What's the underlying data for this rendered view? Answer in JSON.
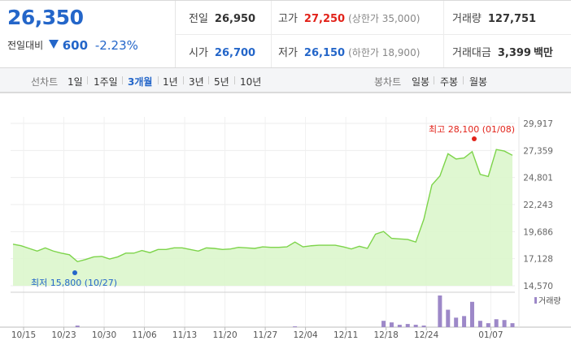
{
  "quote": {
    "price": "26,350",
    "change_label": "전일대비",
    "change_abs": "600",
    "change_pct": "-2.23%",
    "direction": "down",
    "prev_close_label": "전일",
    "prev_close": "26,950",
    "high_label": "고가",
    "high": "27,250",
    "upper_limit": "(상한가 35,000)",
    "volume_label": "거래량",
    "volume": "127,751",
    "open_label": "시가",
    "open": "26,700",
    "low_label": "저가",
    "low": "26,150",
    "lower_limit": "(하한가 18,900)",
    "turnover_label": "거래대금",
    "turnover": "3,399",
    "turnover_unit": "백만",
    "colors": {
      "up": "#e2231a",
      "down": "#2466c9"
    }
  },
  "toolbar": {
    "line_label": "선차트",
    "periods": [
      "1일",
      "1주일",
      "3개월",
      "1년",
      "3년",
      "5년",
      "10년"
    ],
    "selected_period": "3개월",
    "candle_label": "봉차트",
    "candles": [
      "일봉",
      "주봉",
      "월봉"
    ]
  },
  "chart_data": {
    "type": "area",
    "x_tick_labels": [
      "10/15",
      "10/23",
      "10/30",
      "11/06",
      "11/13",
      "11/20",
      "11/27",
      "12/04",
      "12/11",
      "12/18",
      "12/24",
      "01/07"
    ],
    "y_ticks": [
      "29,917",
      "27,359",
      "24,801",
      "22,243",
      "19,686",
      "17,128",
      "14,570"
    ],
    "ylim": [
      14570,
      29917
    ],
    "values": [
      18500,
      18350,
      18100,
      17850,
      18150,
      17850,
      17650,
      17500,
      16850,
      17050,
      17300,
      17350,
      17100,
      17300,
      17650,
      17650,
      17900,
      17700,
      18000,
      18000,
      18150,
      18150,
      18000,
      17850,
      18150,
      18100,
      18000,
      18050,
      18200,
      18150,
      18100,
      18250,
      18200,
      18200,
      18250,
      18700,
      18250,
      18350,
      18400,
      18400,
      18400,
      18250,
      18050,
      18300,
      18100,
      19450,
      19700,
      19050,
      19000,
      18950,
      18700,
      20850,
      24100,
      24950,
      27050,
      26550,
      26650,
      27250,
      25100,
      24900,
      27450,
      27300,
      26900
    ],
    "max_label": "최고 28,100 (01/08)",
    "min_label": "최저 15,800 (10/27)",
    "volume_legend": "거래량",
    "volume": [
      0,
      0,
      0,
      0,
      0,
      0,
      0,
      0,
      2,
      0,
      0,
      0,
      0,
      0,
      0,
      0,
      0,
      0,
      0,
      0,
      0,
      0,
      0,
      0,
      0,
      0,
      0,
      0,
      0,
      0,
      0,
      0,
      0,
      0,
      0,
      1,
      0,
      0,
      0,
      0,
      0,
      0,
      0,
      0,
      0,
      0,
      8,
      6,
      3,
      4,
      3,
      2,
      0,
      40,
      22,
      12,
      14,
      32,
      8,
      5,
      10,
      9,
      5
    ],
    "colors": {
      "line": "#7dd44a",
      "fill": "#dcf6cc",
      "volume": "#9d88c8",
      "max": "#e2231a",
      "min": "#2466c9"
    }
  }
}
